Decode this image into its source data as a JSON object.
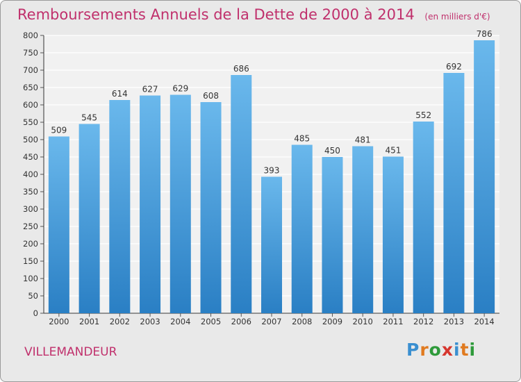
{
  "title": "Remboursements Annuels de la Dette de 2000 à 2014",
  "subtitle": "(en milliers d'€)",
  "place": "VILLEMANDEUR",
  "logo": {
    "letters": [
      "P",
      "r",
      "o",
      "x",
      "i",
      "t",
      "i"
    ],
    "colors": [
      "#3a8fd0",
      "#e07a1f",
      "#2e9a3a",
      "#d6362e",
      "#3a8fd0",
      "#e07a1f",
      "#2e9a3a"
    ]
  },
  "colors": {
    "title": "#c0306c",
    "bar_top": "#6ab8ec",
    "bar_bottom": "#2a7fc4",
    "background": "#e9e9e9"
  },
  "chart_data": {
    "type": "bar",
    "title": "Remboursements Annuels de la Dette de 2000 à 2014",
    "categories": [
      "2000",
      "2001",
      "2002",
      "2003",
      "2004",
      "2005",
      "2006",
      "2007",
      "2008",
      "2009",
      "2010",
      "2011",
      "2012",
      "2013",
      "2014"
    ],
    "values": [
      509,
      545,
      614,
      627,
      629,
      608,
      686,
      393,
      485,
      450,
      481,
      451,
      552,
      692,
      786
    ],
    "ylim": [
      0,
      800
    ],
    "ytick_step": 50,
    "grid": true
  }
}
